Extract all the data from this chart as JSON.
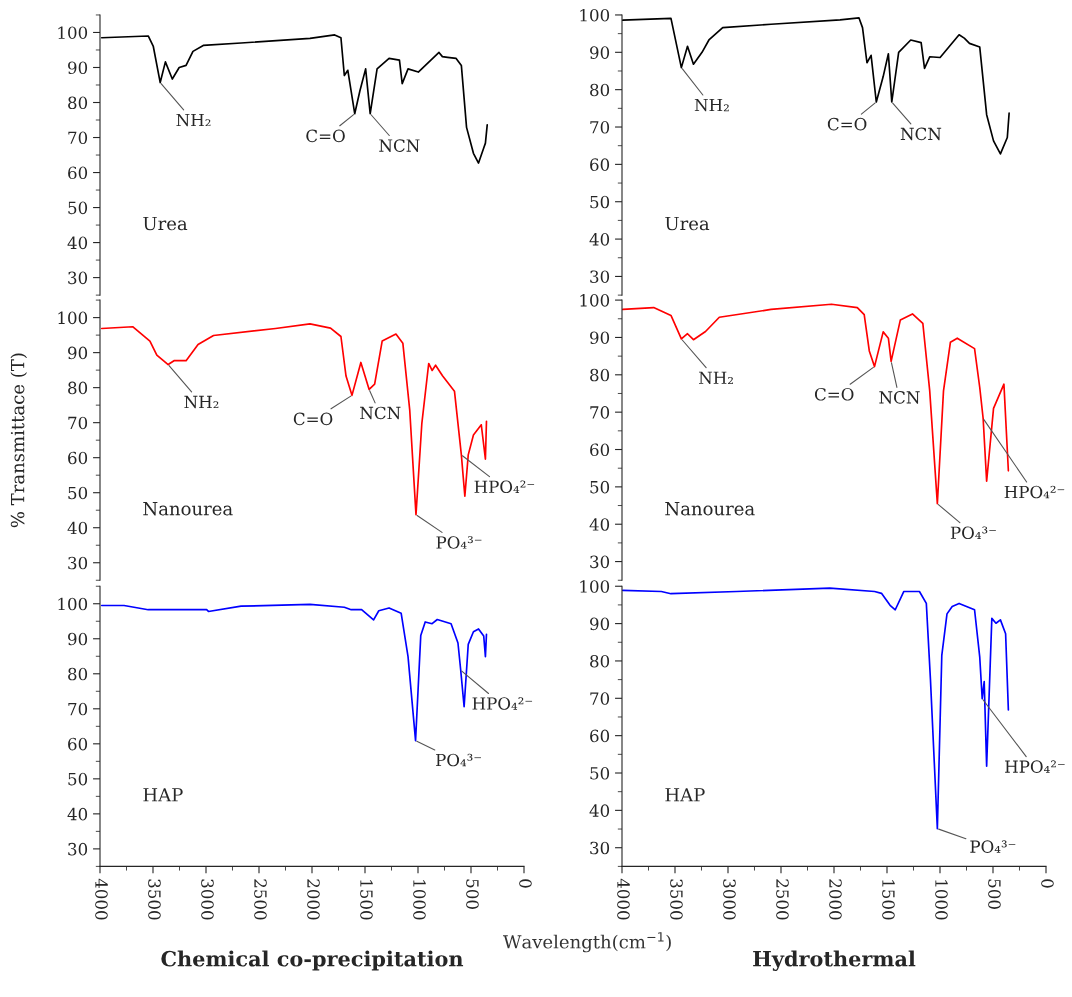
{
  "chart_data": [
    {
      "type": "line",
      "xlim": [
        4000,
        0
      ],
      "ylim": [
        25,
        105
      ],
      "xticks": [
        4000,
        3500,
        3000,
        2500,
        2000,
        1500,
        1000,
        500,
        0
      ],
      "yticks": [
        30,
        40,
        50,
        60,
        70,
        80,
        90,
        100
      ],
      "tick_labels": "y",
      "series": [
        {
          "color": "#000000",
          "x": [
            3984,
            3545,
            3497,
            3432,
            3383,
            3318,
            3253,
            3188,
            3123,
            3026,
            2669,
            2019,
            1786,
            1727,
            1695,
            1662,
            1597,
            1549,
            1494,
            1451,
            1386,
            1273,
            1175,
            1149,
            1094,
            997,
            802,
            770,
            721,
            640,
            591,
            542,
            477,
            429,
            380,
            364,
            347
          ],
          "values": [
            98.5,
            99,
            96,
            85.7,
            91.6,
            86.7,
            90,
            90.6,
            94.6,
            96.3,
            97,
            98.3,
            99.3,
            98.5,
            87.7,
            89.2,
            76.8,
            83.2,
            89.6,
            76.8,
            89.6,
            92.6,
            92.1,
            85.4,
            89.6,
            88.7,
            94.3,
            93.1,
            92.9,
            92.6,
            90.6,
            72.9,
            65.5,
            62.7,
            67,
            68.4,
            73.6
          ]
        }
      ],
      "annotations": [
        "Urea",
        {
          "text": "NH₂",
          "x": 3432,
          "y": 85.7
        },
        {
          "text": "C=O",
          "x": 1597,
          "y": 76.8
        },
        {
          "text": "NCN",
          "x": 1451,
          "y": 76.8
        }
      ]
    },
    {
      "type": "line",
      "xlim": [
        4000,
        0
      ],
      "ylim": [
        25,
        100
      ],
      "xticks": [
        4000,
        3500,
        3000,
        2500,
        2000,
        1500,
        1000,
        500,
        0
      ],
      "yticks": [
        30,
        40,
        50,
        60,
        70,
        80,
        90,
        100
      ],
      "tick_labels": "y",
      "series": [
        {
          "color": "#000000",
          "x": [
            3993,
            3538,
            3440,
            3382,
            3326,
            3245,
            3180,
            3050,
            2594,
            1943,
            1764,
            1731,
            1689,
            1650,
            1601,
            1536,
            1487,
            1455,
            1390,
            1276,
            1178,
            1146,
            1097,
            999,
            820,
            771,
            722,
            625,
            560,
            495,
            430,
            365,
            348
          ],
          "values": [
            98.6,
            99.1,
            85.9,
            91.6,
            86.8,
            90,
            93.3,
            96.6,
            97.5,
            98.7,
            99.2,
            96.6,
            87.2,
            89.2,
            76.7,
            83.5,
            89.6,
            76.7,
            90,
            93.3,
            92.6,
            85.7,
            88.8,
            88.6,
            94.7,
            93.8,
            92.4,
            91.4,
            73.3,
            66.3,
            62.8,
            67.2,
            73.7
          ]
        }
      ],
      "annotations": [
        "Urea",
        {
          "text": "NH₂",
          "x": 3440,
          "y": 85.9
        },
        {
          "text": "C=O",
          "x": 1601,
          "y": 76.7
        },
        {
          "text": "NCN",
          "x": 1455,
          "y": 76.7
        }
      ]
    },
    {
      "type": "line",
      "xlim": [
        4000,
        0
      ],
      "ylim": [
        25,
        105
      ],
      "xticks": [
        4000,
        3500,
        3000,
        2500,
        2000,
        1500,
        1000,
        500,
        0
      ],
      "yticks": [
        30,
        40,
        50,
        60,
        70,
        80,
        90,
        100
      ],
      "tick_labels": "y",
      "ylabel": "% Transmittace (T)",
      "series": [
        {
          "color": "#ff0000",
          "x": [
            3984,
            3692,
            3529,
            3464,
            3357,
            3302,
            3188,
            3075,
            2929,
            2344,
            2019,
            1825,
            1727,
            1679,
            1623,
            1539,
            1461,
            1409,
            1338,
            1208,
            1143,
            1078,
            1019,
            964,
            899,
            867,
            834,
            769,
            656,
            591,
            558,
            526,
            477,
            403,
            364,
            354
          ],
          "values": [
            96.9,
            97.4,
            93.3,
            89.3,
            86.6,
            87.7,
            87.7,
            92.3,
            94.9,
            96.9,
            98.2,
            97,
            94.6,
            83.3,
            77.8,
            87.2,
            79.5,
            81,
            93.3,
            95.3,
            92.7,
            73.6,
            43.7,
            69.7,
            86.9,
            84.9,
            86.4,
            83.4,
            79,
            60.8,
            49,
            60.8,
            66.5,
            69.4,
            59.6,
            70.4
          ]
        }
      ],
      "annotations": [
        "Nanourea",
        {
          "text": "NH₂",
          "x": 3357,
          "y": 86.6
        },
        {
          "text": "C=O",
          "x": 1623,
          "y": 77.8
        },
        {
          "text": "NCN",
          "x": 1461,
          "y": 79.5
        },
        {
          "text": "PO₄³⁻",
          "x": 1019,
          "y": 43.7
        },
        {
          "text": "HPO₄²⁻",
          "x": 591,
          "y": 60.8
        }
      ]
    },
    {
      "type": "line",
      "xlim": [
        4000,
        0
      ],
      "ylim": [
        25,
        100
      ],
      "xticks": [
        4000,
        3500,
        3000,
        2500,
        2000,
        1500,
        1000,
        500,
        0
      ],
      "yticks": [
        30,
        40,
        50,
        60,
        70,
        80,
        90,
        100
      ],
      "tick_labels": "y",
      "series": [
        {
          "color": "#ff0000",
          "x": [
            3993,
            3701,
            3538,
            3440,
            3382,
            3326,
            3212,
            3082,
            2594,
            2024,
            1780,
            1715,
            1667,
            1618,
            1536,
            1487,
            1461,
            1374,
            1260,
            1162,
            1097,
            1025,
            967,
            902,
            837,
            674,
            625,
            593,
            560,
            495,
            397,
            355
          ],
          "values": [
            97.5,
            98,
            95.9,
            89.6,
            91,
            89.4,
            91.6,
            95.4,
            97.5,
            98.9,
            98,
            96.1,
            86.4,
            82.2,
            91.5,
            89.8,
            83.6,
            94.7,
            96.3,
            93.8,
            75.7,
            45.5,
            75.7,
            88.7,
            89.8,
            87,
            76.6,
            68.3,
            51.5,
            71,
            77.5,
            54.3
          ]
        }
      ],
      "annotations": [
        "Nanourea",
        {
          "text": "NH₂",
          "x": 3440,
          "y": 89.6
        },
        {
          "text": "C=O",
          "x": 1618,
          "y": 82.2
        },
        {
          "text": "NCN",
          "x": 1461,
          "y": 83.6
        },
        {
          "text": "PO₄³⁻",
          "x": 1025,
          "y": 45.5
        },
        {
          "text": "HPO₄²⁻",
          "x": 593,
          "y": 68.3
        }
      ]
    },
    {
      "type": "line",
      "xlim": [
        4000,
        0
      ],
      "ylim": [
        25,
        105
      ],
      "xticks": [
        4000,
        3500,
        3000,
        2500,
        2000,
        1500,
        1000,
        500,
        0
      ],
      "yticks": [
        30,
        40,
        50,
        60,
        70,
        80,
        90,
        100
      ],
      "xlabel": "Wavelength(cm$^{−1}$)",
      "title": "Chemical co-precipitation",
      "series": [
        {
          "color": "#0000ff",
          "x": [
            3984,
            3773,
            3545,
            2994,
            2977,
            2669,
            2019,
            1695,
            1630,
            1532,
            1419,
            1370,
            1273,
            1159,
            1094,
            1023,
            974,
            932,
            867,
            818,
            688,
            623,
            597,
            565,
            526,
            477,
            429,
            380,
            364,
            354
          ],
          "values": [
            99.5,
            99.5,
            98.3,
            98.3,
            97.8,
            99.3,
            99.8,
            99,
            98.3,
            98.3,
            95.4,
            98,
            98.8,
            97.3,
            84.9,
            60.9,
            90.9,
            94.8,
            94.3,
            95.5,
            94.3,
            88.8,
            81,
            70.6,
            88.4,
            92,
            92.8,
            90.8,
            84.9,
            91.3
          ]
        }
      ],
      "annotations": [
        "HAP",
        {
          "text": "PO₄³⁻",
          "x": 1023,
          "y": 60.9
        },
        {
          "text": "HPO₄²⁻",
          "x": 597,
          "y": 81
        }
      ]
    },
    {
      "type": "line",
      "xlim": [
        4000,
        0
      ],
      "ylim": [
        25,
        100
      ],
      "xticks": [
        4000,
        3500,
        3000,
        2500,
        2000,
        1500,
        1000,
        500,
        0
      ],
      "yticks": [
        30,
        40,
        50,
        60,
        70,
        80,
        90,
        100
      ],
      "title": "Hydrothermal",
      "series": [
        {
          "color": "#0000ff",
          "x": [
            3993,
            3629,
            3538,
            2919,
            2040,
            1617,
            1552,
            1471,
            1422,
            1341,
            1194,
            1129,
            1090,
            1025,
            983,
            934,
            885,
            820,
            674,
            625,
            602,
            583,
            560,
            511,
            472,
            430,
            381,
            355
          ],
          "values": [
            98.9,
            98.6,
            98,
            98.6,
            99.5,
            98.6,
            98.1,
            94.9,
            93.7,
            98.6,
            98.6,
            95.4,
            75,
            35.1,
            81.5,
            92.6,
            94.6,
            95.4,
            93.7,
            81,
            69.9,
            74.5,
            51.8,
            91.4,
            90.1,
            91,
            87.3,
            66.9
          ]
        }
      ],
      "annotations": [
        "HAP",
        {
          "text": "PO₄³⁻",
          "x": 1025,
          "y": 35.1
        },
        {
          "text": "HPO₄²⁻",
          "x": 602,
          "y": 69.9
        }
      ]
    }
  ]
}
